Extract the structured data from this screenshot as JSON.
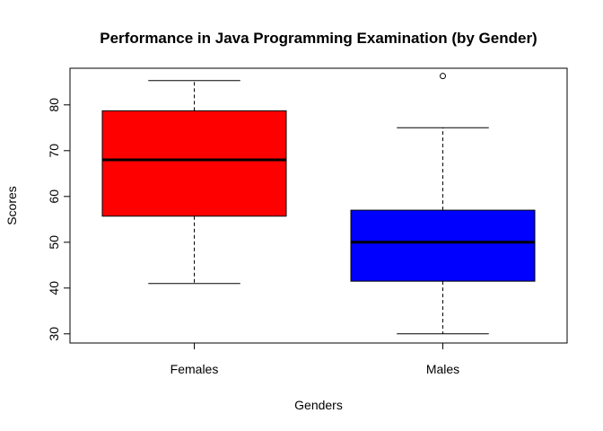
{
  "chart_data": {
    "type": "boxplot",
    "title": "Performance in Java Programming Examination (by Gender)",
    "xlabel": "Genders",
    "ylabel": "Scores",
    "ylim": [
      28,
      88
    ],
    "yticks": [
      30,
      40,
      50,
      60,
      70,
      80
    ],
    "grid": false,
    "legend": "none",
    "categories": [
      "Females",
      "Males"
    ],
    "boxes": [
      {
        "category": "Females",
        "color": "#ff0000",
        "whisker_low": 41,
        "q1": 55.7,
        "median": 68,
        "q3": 78.7,
        "whisker_high": 85.3,
        "outliers": []
      },
      {
        "category": "Males",
        "color": "#0000ff",
        "whisker_low": 30,
        "q1": 41.5,
        "median": 50,
        "q3": 57,
        "whisker_high": 75,
        "outliers": [
          86.3
        ]
      }
    ]
  }
}
